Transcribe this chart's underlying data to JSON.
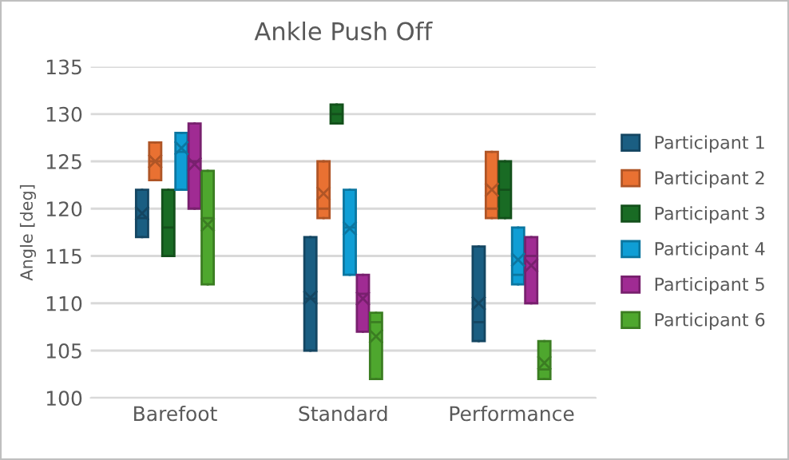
{
  "chart_data": {
    "type": "box",
    "title": "Ankle Push Off",
    "ylabel": "Angle [deg]",
    "categories": [
      "Barefoot",
      "Standard",
      "Performance"
    ],
    "ylim": [
      100,
      135
    ],
    "yticks": [
      100,
      105,
      110,
      115,
      120,
      125,
      130,
      135
    ],
    "grid": "y",
    "legend": "right",
    "marker": "cross",
    "series": [
      {
        "name": "Participant 1",
        "color": "#1a5e82",
        "boxes": [
          {
            "low": 117,
            "q1": 117,
            "median": 119,
            "q3": 122,
            "high": 122,
            "mean": 119.5
          },
          {
            "low": 105,
            "q1": 105,
            "median": 110.5,
            "q3": 117,
            "high": 117,
            "mean": 110.6
          },
          {
            "low": 106,
            "q1": 106,
            "median": 108,
            "q3": 116,
            "high": 116,
            "mean": 110
          }
        ]
      },
      {
        "name": "Participant 2",
        "color": "#e97132",
        "boxes": [
          {
            "low": 123,
            "q1": 123,
            "median": 125,
            "q3": 127,
            "high": 127,
            "mean": 125
          },
          {
            "low": 119,
            "q1": 119,
            "median": 120,
            "q3": 125,
            "high": 125,
            "mean": 121.6
          },
          {
            "low": 119,
            "q1": 119,
            "median": 120,
            "q3": 126,
            "high": 126,
            "mean": 122
          }
        ]
      },
      {
        "name": "Participant 3",
        "color": "#196b24",
        "boxes": [
          {
            "low": 115,
            "q1": 115,
            "median": 118,
            "q3": 122,
            "high": 122
          },
          {
            "low": 129,
            "q1": 129,
            "median": 130,
            "q3": 131,
            "high": 131
          },
          {
            "low": 119,
            "q1": 119,
            "median": 122,
            "q3": 125,
            "high": 125
          }
        ]
      },
      {
        "name": "Participant 4",
        "color": "#0f9ed5",
        "boxes": [
          {
            "low": 122,
            "q1": 122,
            "median": 126,
            "q3": 128,
            "high": 128,
            "mean": 126.4
          },
          {
            "low": 113,
            "q1": 113,
            "median": 118,
            "q3": 122,
            "high": 122,
            "mean": 117.9
          },
          {
            "low": 112,
            "q1": 112,
            "median": 113,
            "q3": 118,
            "high": 118,
            "mean": 114.6
          }
        ]
      },
      {
        "name": "Participant 5",
        "color": "#a02b93",
        "boxes": [
          {
            "low": 120,
            "q1": 120,
            "median": 125,
            "q3": 129,
            "high": 129,
            "mean": 124.7
          },
          {
            "low": 107,
            "q1": 107,
            "median": 111,
            "q3": 113,
            "high": 113,
            "mean": 110.5
          },
          {
            "low": 110,
            "q1": 110,
            "median": 115,
            "q3": 117,
            "high": 117,
            "mean": 114
          }
        ]
      },
      {
        "name": "Participant 6",
        "color": "#4ea72e",
        "boxes": [
          {
            "low": 112,
            "q1": 112,
            "median": 119,
            "q3": 124,
            "high": 124,
            "mean": 118.3
          },
          {
            "low": 102,
            "q1": 102,
            "median": 108,
            "q3": 109,
            "high": 109,
            "mean": 106.5
          },
          {
            "low": 102,
            "q1": 102,
            "median": 103,
            "q3": 106,
            "high": 106,
            "mean": 103.7
          }
        ]
      }
    ]
  }
}
